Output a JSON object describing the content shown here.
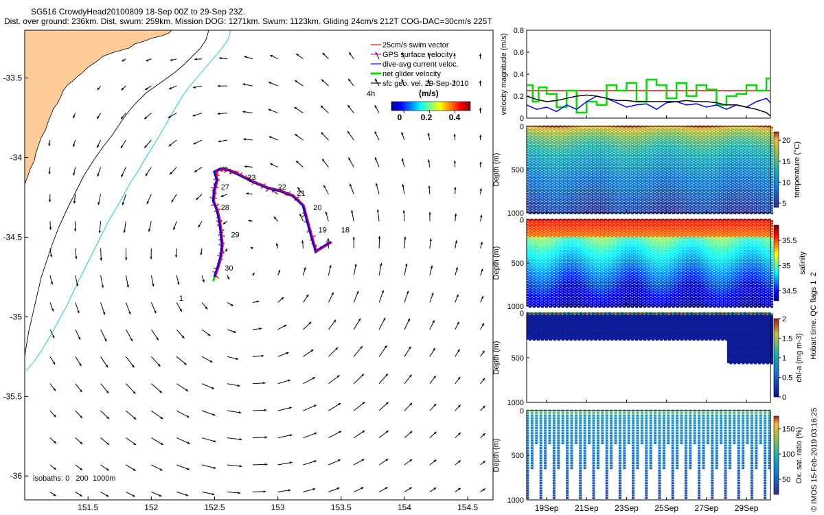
{
  "title": {
    "line1": "SG516 CrowdyHead20100809 18-Sep 00Z to 29-Sep 23Z.",
    "line2": "Dist. over ground: 236km. Dist. swum: 259km. Mission DOG: 1271km. Swum: 1123km. Gliding 24cm/s 212T COG-DAC=30cm/s 225T"
  },
  "map": {
    "xticks": [
      "151.5",
      "152",
      "152.5",
      "153",
      "153.5",
      "154",
      "154.5"
    ],
    "xtick_values": [
      151.5,
      152,
      152.5,
      153,
      153.5,
      154,
      154.5
    ],
    "yticks": [
      "-33.5",
      "-34",
      "-34.5",
      "-35",
      "-35.5",
      "-36"
    ],
    "ytick_values": [
      -33.5,
      -34,
      -34.5,
      -35,
      -35.5,
      -36
    ],
    "xlim": [
      151.0,
      154.7
    ],
    "ylim": [
      -36.15,
      -33.2
    ],
    "legend": [
      {
        "label": "25cm/s swim vector",
        "color": "#ff0000"
      },
      {
        "label": "GPS surface velocity",
        "color": "#ff00ff"
      },
      {
        "label": "dive-avg current veloc.",
        "color": "#0000ff"
      },
      {
        "label": "net glider velocity",
        "color": "#00dd00"
      },
      {
        "label": "sfc geo. vel. 29-Sep-2010",
        "color": "#000000"
      }
    ],
    "colorbar_unit": "(m/s)",
    "colorbar_ticks": [
      "0",
      "0.2",
      "0.4"
    ],
    "label_4h": "4h",
    "isobaths_label": "isobaths: 0   200  1000m",
    "day_labels": [
      {
        "text": "18",
        "lon": 153.5,
        "lat": -34.47
      },
      {
        "text": "19",
        "lon": 153.32,
        "lat": -34.47
      },
      {
        "text": "20",
        "lon": 153.28,
        "lat": -34.33
      },
      {
        "text": "21",
        "lon": 153.15,
        "lat": -34.24
      },
      {
        "text": "22",
        "lon": 153.0,
        "lat": -34.2
      },
      {
        "text": "23",
        "lon": 152.76,
        "lat": -34.14
      },
      {
        "text": "27",
        "lon": 152.55,
        "lat": -34.2
      },
      {
        "text": "28",
        "lon": 152.55,
        "lat": -34.33
      },
      {
        "text": "29",
        "lon": 152.63,
        "lat": -34.5
      },
      {
        "text": "30",
        "lon": 152.58,
        "lat": -34.71
      },
      {
        "text": "1",
        "lon": 152.22,
        "lat": -34.9
      }
    ],
    "track": [
      [
        153.42,
        -34.53
      ],
      [
        153.3,
        -34.59
      ],
      [
        153.25,
        -34.45
      ],
      [
        153.2,
        -34.3
      ],
      [
        153.12,
        -34.24
      ],
      [
        153.02,
        -34.21
      ],
      [
        152.92,
        -34.19
      ],
      [
        152.8,
        -34.15
      ],
      [
        152.7,
        -34.11
      ],
      [
        152.62,
        -34.08
      ],
      [
        152.55,
        -34.07
      ],
      [
        152.5,
        -34.09
      ],
      [
        152.52,
        -34.14
      ],
      [
        152.5,
        -34.2
      ],
      [
        152.49,
        -34.27
      ],
      [
        152.52,
        -34.33
      ],
      [
        152.54,
        -34.4
      ],
      [
        152.55,
        -34.47
      ],
      [
        152.56,
        -34.55
      ],
      [
        152.55,
        -34.62
      ],
      [
        152.53,
        -34.68
      ],
      [
        152.5,
        -34.75
      ]
    ]
  },
  "panels": {
    "xtick_labels": [
      "19Sep",
      "21Sep",
      "23Sep",
      "25Sep",
      "27Sep",
      "29Sep"
    ],
    "xtick_values": [
      19,
      21,
      23,
      25,
      27,
      29
    ],
    "xlim": [
      18,
      30.2
    ],
    "velocity": {
      "ylabel": "velocity magnitude (m/s)",
      "yticks": [
        "0",
        "0.2",
        "0.4",
        "0.6",
        "0.8"
      ],
      "ytick_values": [
        0,
        0.2,
        0.4,
        0.6,
        0.8
      ],
      "ylim": [
        0,
        0.8
      ]
    },
    "temperature": {
      "cbar_label": "temperature (°C)",
      "cbar_ticks": [
        "5",
        "10",
        "15",
        "20"
      ],
      "cbar_values": [
        5,
        10,
        15,
        20
      ],
      "cbar_range": [
        4,
        22
      ]
    },
    "salinity": {
      "cbar_label": "salinity",
      "cbar_ticks": [
        "34.5",
        "35",
        "35.5"
      ],
      "cbar_values": [
        34.5,
        35,
        35.5
      ],
      "cbar_range": [
        34.3,
        35.8
      ]
    },
    "chla": {
      "cbar_label": "chl-a (mg m-3)",
      "cbar_ticks": [
        "0",
        "0.5",
        "1",
        "1.5",
        "2"
      ],
      "cbar_values": [
        0,
        0.5,
        1,
        1.5,
        2
      ],
      "cbar_range": [
        0,
        2
      ]
    },
    "oxygen": {
      "cbar_label": "Ox. sat. ratio (%)",
      "cbar_ticks": [
        "50",
        "100",
        "150"
      ],
      "cbar_values": [
        50,
        100,
        150
      ],
      "cbar_range": [
        20,
        175
      ]
    },
    "depth_label": "Depth (m)",
    "depth_ticks": [
      "0",
      "500",
      "1000"
    ],
    "depth_values": [
      0,
      500,
      1000
    ],
    "qc_label": "Hobart time. QC flags 1  2"
  },
  "chart_data": [
    {
      "type": "scatter",
      "title": "SG516 CrowdyHead20100809 18-Sep 00Z to 29-Sep 23Z.",
      "xticks": [
        151.5,
        152,
        152.5,
        153,
        153.5,
        154,
        154.5
      ],
      "yticks": [
        -33.5,
        -34,
        -34.5,
        -35,
        -35.5,
        -36
      ],
      "xlim": [
        151.0,
        154.7
      ],
      "ylim": [
        -36.15,
        -33.2
      ],
      "series": [
        {
          "name": "25cm/s swim vector"
        },
        {
          "name": "GPS surface velocity"
        },
        {
          "name": "dive-avg current veloc."
        },
        {
          "name": "net glider velocity"
        },
        {
          "name": "sfc geo. vel. 29-Sep-2010"
        }
      ],
      "colorbar": {
        "label": "(m/s)",
        "ticks": [
          0,
          0.2,
          0.4
        ]
      }
    },
    {
      "type": "line",
      "ylabel": "velocity magnitude (m/s)",
      "ylim": [
        0,
        0.8
      ],
      "xticks": [
        "19Sep",
        "21Sep",
        "23Sep",
        "25Sep",
        "27Sep",
        "29Sep"
      ],
      "series": [
        {
          "color": "#ff0000",
          "x": [
            18,
            30.2
          ],
          "y": [
            0.25,
            0.25
          ]
        },
        {
          "color": "#00dd00",
          "x": [
            18,
            18.3,
            18.6,
            19,
            19.5,
            20,
            20.5,
            21,
            21.5,
            22,
            22.5,
            23,
            23.5,
            24,
            24.5,
            25,
            25.5,
            26,
            26.5,
            27,
            27.5,
            28,
            28.5,
            29,
            29.5,
            30,
            30.2
          ],
          "y": [
            0.3,
            0.15,
            0.28,
            0.22,
            0.1,
            0.25,
            0.05,
            0.15,
            0.12,
            0.3,
            0.25,
            0.32,
            0.15,
            0.35,
            0.3,
            0.18,
            0.32,
            0.2,
            0.3,
            0.26,
            0.12,
            0.2,
            0.22,
            0.3,
            0.25,
            0.36,
            0.3
          ]
        },
        {
          "color": "#0000ff",
          "x": [
            18,
            18.5,
            19,
            19.5,
            20,
            20.5,
            21,
            21.5,
            22,
            22.5,
            23,
            23.5,
            24,
            24.5,
            25,
            25.5,
            26,
            26.5,
            27,
            27.5,
            28,
            28.5,
            29,
            29.5,
            30,
            30.2
          ],
          "y": [
            0.12,
            0.08,
            0.1,
            0.06,
            0.12,
            0.08,
            0.15,
            0.2,
            0.18,
            0.14,
            0.1,
            0.12,
            0.13,
            0.08,
            0.14,
            0.15,
            0.12,
            0.13,
            0.1,
            0.12,
            0.08,
            0.12,
            0.1,
            0.15,
            0.18,
            0.14
          ]
        },
        {
          "color": "#000000",
          "x": [
            18,
            18.5,
            19,
            19.5,
            20,
            20.5,
            21,
            21.5,
            22,
            22.5,
            23,
            23.5,
            24,
            24.5,
            25,
            25.5,
            26,
            26.5,
            27,
            27.5,
            28,
            28.5,
            29,
            29.5,
            30,
            30.2
          ],
          "y": [
            0.2,
            0.17,
            0.15,
            0.16,
            0.18,
            0.2,
            0.21,
            0.2,
            0.18,
            0.16,
            0.16,
            0.15,
            0.15,
            0.15,
            0.15,
            0.15,
            0.16,
            0.15,
            0.15,
            0.14,
            0.12,
            0.12,
            0.1,
            0.08,
            0.05,
            0.02
          ]
        }
      ]
    },
    {
      "type": "heatmap",
      "ylabel": "Depth (m)",
      "ylim": [
        1000,
        0
      ],
      "colorbar": {
        "label": "temperature (°C)",
        "ticks": [
          5,
          10,
          15,
          20
        ]
      }
    },
    {
      "type": "heatmap",
      "ylabel": "Depth (m)",
      "ylim": [
        1000,
        0
      ],
      "colorbar": {
        "label": "salinity",
        "ticks": [
          34.5,
          35,
          35.5
        ]
      }
    },
    {
      "type": "heatmap",
      "ylabel": "Depth (m)",
      "ylim": [
        1000,
        0
      ],
      "colorbar": {
        "label": "chl-a (mg m-3)",
        "ticks": [
          0,
          0.5,
          1,
          1.5,
          2
        ]
      }
    },
    {
      "type": "heatmap",
      "ylabel": "Depth (m)",
      "ylim": [
        1000,
        0
      ],
      "colorbar": {
        "label": "Ox. sat. ratio (%)",
        "ticks": [
          50,
          100,
          150
        ]
      }
    }
  ],
  "watermark": "© IMOS 15-Feb-2019 03:16:25"
}
